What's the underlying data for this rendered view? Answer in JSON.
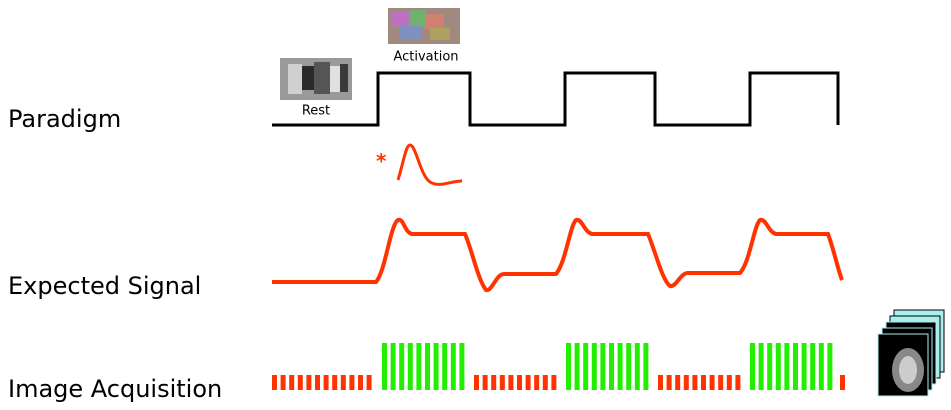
{
  "labels": {
    "paradigm": "Paradigm",
    "signal": "Expected Signal",
    "acquisition": "Image Acquisition"
  },
  "thumbnails": {
    "rest": "Rest",
    "activation": "Activation"
  },
  "hrf_marker": "*"
}
